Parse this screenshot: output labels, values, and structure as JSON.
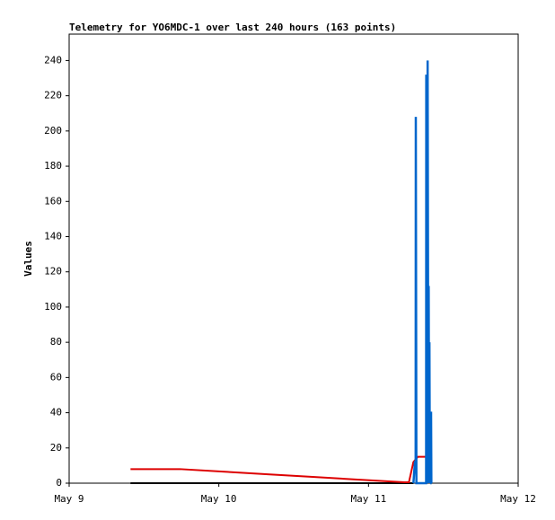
{
  "chart_data": {
    "type": "line",
    "title": "Telemetry for YO6MDC-1 over last 240 hours (163 points)",
    "ylabel": "Values",
    "xlim": [
      9,
      12
    ],
    "xticks": [
      {
        "value": 9,
        "label": "May 9"
      },
      {
        "value": 10,
        "label": "May 10"
      },
      {
        "value": 11,
        "label": "May 11"
      },
      {
        "value": 12,
        "label": "May 12"
      }
    ],
    "ylim": [
      0,
      255
    ],
    "yticks": [
      0,
      20,
      40,
      60,
      80,
      100,
      120,
      140,
      160,
      180,
      200,
      220,
      240
    ],
    "series": [
      {
        "color": "#000000",
        "x": [
          9.41,
          11.3
        ],
        "values": [
          0,
          0
        ]
      },
      {
        "color": "#dd0000",
        "x": [
          9.41,
          9.74,
          10.04,
          10.34,
          10.64,
          10.94,
          11.24,
          11.27,
          11.3,
          11.33,
          11.39
        ],
        "values": [
          8,
          8,
          6.5,
          5,
          3.5,
          2,
          0.5,
          0.5,
          12,
          15,
          15
        ]
      },
      {
        "color": "#0066cc",
        "x": [
          11.3,
          11.31,
          11.315,
          11.316,
          11.32,
          11.385,
          11.386,
          11.39,
          11.395,
          11.4,
          11.402,
          11.405,
          11.407,
          11.41,
          11.412,
          11.418,
          11.42,
          11.422
        ],
        "values": [
          0,
          12,
          12,
          208,
          0,
          0,
          232,
          0,
          240,
          0,
          112,
          0,
          80,
          0,
          40,
          40,
          0,
          0
        ]
      }
    ]
  }
}
